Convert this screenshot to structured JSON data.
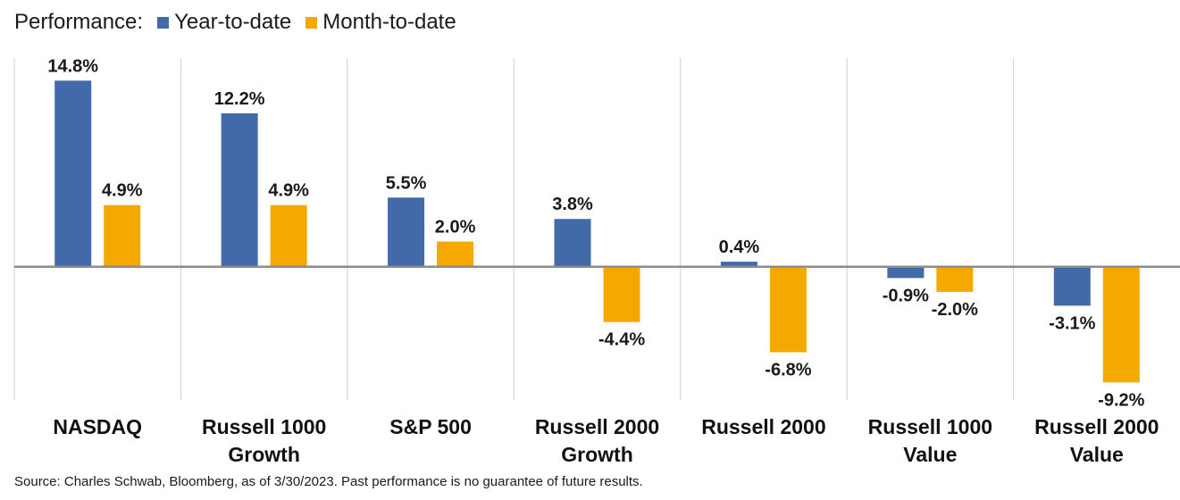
{
  "legend": {
    "prefix": "Performance:",
    "items": [
      {
        "label": "Year-to-date",
        "color": "#4269a8"
      },
      {
        "label": "Month-to-date",
        "color": "#f5a800"
      }
    ]
  },
  "chart_data": {
    "type": "bar",
    "categories": [
      [
        "NASDAQ"
      ],
      [
        "Russell 1000",
        "Growth"
      ],
      [
        "S&P 500"
      ],
      [
        "Russell 2000",
        "Growth"
      ],
      [
        "Russell 2000"
      ],
      [
        "Russell 1000",
        "Value"
      ],
      [
        "Russell 2000",
        "Value"
      ]
    ],
    "series": [
      {
        "name": "Year-to-date",
        "color": "#4269a8",
        "values": [
          14.8,
          12.2,
          5.5,
          3.8,
          0.4,
          -0.9,
          -3.1
        ],
        "labels": [
          "14.8%",
          "12.2%",
          "5.5%",
          "3.8%",
          "0.4%",
          "-0.9%",
          "-3.1%"
        ]
      },
      {
        "name": "Month-to-date",
        "color": "#f5a800",
        "values": [
          4.9,
          4.9,
          2.0,
          -4.4,
          -6.8,
          -2.0,
          -9.2
        ],
        "labels": [
          "4.9%",
          "4.9%",
          "2.0%",
          "-4.4%",
          "-6.8%",
          "-2.0%",
          "-9.2%"
        ]
      }
    ],
    "ylim": [
      -10.6,
      16.6
    ],
    "value_format": "percent",
    "legend_position": "top-left",
    "grid": false
  },
  "footer": {
    "source": "Source: Charles Schwab, Bloomberg, as of 3/30/2023.  Past performance is no guarantee of future results."
  }
}
